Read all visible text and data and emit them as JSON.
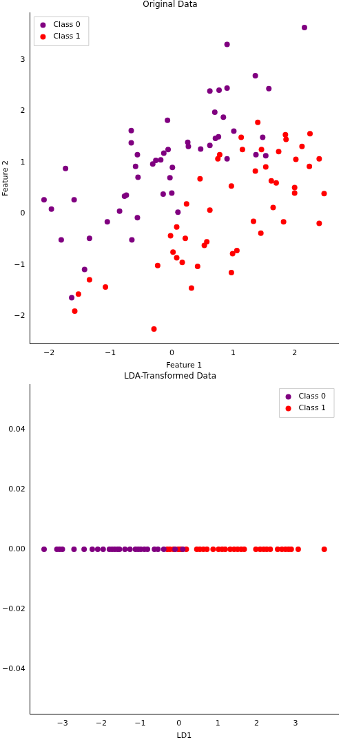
{
  "chart_data": [
    {
      "type": "scatter",
      "title": "Original Data",
      "xlabel": "Feature 1",
      "ylabel": "Feature 2",
      "xlim": [
        -2.31,
        2.71
      ],
      "ylim": [
        -2.54,
        3.92
      ],
      "xticks": [
        {
          "value": -2,
          "label": "−2"
        },
        {
          "value": -1,
          "label": "−1"
        },
        0,
        1,
        2
      ],
      "yticks": [
        {
          "value": -2,
          "label": "−2"
        },
        {
          "value": -1,
          "label": "−1"
        },
        0,
        1,
        2,
        3
      ],
      "marker": "circle",
      "legend": "top left",
      "grid": false,
      "series": [
        {
          "name": "Class 0",
          "color": "#800080",
          "x": [
            2.16,
            0.9,
            1.36,
            0.62,
            0.77,
            0.9,
            1.58,
            0.7,
            0.84,
            1.01,
            0.76,
            0.71,
            1.48,
            0.26,
            0.27,
            0.47,
            0.62,
            1.37,
            1.53,
            0.9,
            -0.07,
            -0.66,
            -0.66,
            -0.56,
            -0.13,
            -0.06,
            -0.18,
            -0.26,
            -0.31,
            -0.59,
            0.01,
            -1.73,
            -0.55,
            -0.03,
            -2.08,
            -1.59,
            -1.96,
            -0.14,
            0.0,
            -0.77,
            -0.74,
            -0.85,
            0.1,
            -0.56,
            -1.05,
            -1.8,
            -1.34,
            -0.65,
            -1.42,
            -1.63
          ],
          "values": [
            3.63,
            3.3,
            2.69,
            2.39,
            2.41,
            2.45,
            2.44,
            1.98,
            1.88,
            1.61,
            1.5,
            1.47,
            1.49,
            1.39,
            1.31,
            1.26,
            1.33,
            1.15,
            1.13,
            1.07,
            1.82,
            1.62,
            1.38,
            1.15,
            1.18,
            1.25,
            1.05,
            1.04,
            0.97,
            0.92,
            0.9,
            0.88,
            0.71,
            0.7,
            0.27,
            0.27,
            0.09,
            0.38,
            0.4,
            0.34,
            0.36,
            0.05,
            0.03,
            -0.08,
            -0.16,
            -0.51,
            -0.48,
            -0.51,
            -1.09,
            -1.64
          ]
        },
        {
          "name": "Class 1",
          "color": "#ff0000",
          "x": [
            1.4,
            1.13,
            1.85,
            1.86,
            2.25,
            1.15,
            1.46,
            1.74,
            2.12,
            0.78,
            0.75,
            2.02,
            2.4,
            2.24,
            1.53,
            1.36,
            0.46,
            1.62,
            1.7,
            0.97,
            2.0,
            2.0,
            2.48,
            0.24,
            0.62,
            1.65,
            0.08,
            1.33,
            1.82,
            2.4,
            1.45,
            0.22,
            0.57,
            0.53,
            1.06,
            0.99,
            0.08,
            0.17,
            0.42,
            0.97,
            0.32,
            -0.02,
            0.02,
            -0.23,
            -1.34,
            -1.08,
            -1.52,
            -1.58,
            -0.29
          ],
          "values": [
            1.78,
            1.49,
            1.54,
            1.45,
            1.56,
            1.25,
            1.25,
            1.21,
            1.31,
            1.15,
            1.07,
            1.06,
            1.07,
            0.92,
            0.91,
            0.83,
            0.68,
            0.64,
            0.6,
            0.54,
            0.51,
            0.4,
            0.39,
            0.19,
            0.07,
            0.12,
            -0.26,
            -0.15,
            -0.16,
            -0.19,
            -0.38,
            -0.48,
            -0.55,
            -0.62,
            -0.72,
            -0.78,
            -0.86,
            -0.95,
            -1.03,
            -1.15,
            -1.45,
            -0.43,
            -0.75,
            -1.01,
            -1.29,
            -1.43,
            -1.57,
            -1.9,
            -2.25
          ]
        }
      ]
    },
    {
      "type": "scatter",
      "title": "LDA-Transformed Data",
      "xlabel": "LD1",
      "xlim": [
        -3.83,
        4.1
      ],
      "ylim": [
        -0.055,
        0.055
      ],
      "xticks": [
        {
          "value": -3,
          "label": "−3"
        },
        {
          "value": -2,
          "label": "−2"
        },
        {
          "value": -1,
          "label": "−1"
        },
        0,
        1,
        2,
        3
      ],
      "yticks": [
        {
          "value": -0.04,
          "label": "−0.04"
        },
        {
          "value": -0.02,
          "label": "−0.02"
        },
        {
          "value": 0,
          "label": "0.00"
        },
        0.02,
        0.04
      ],
      "marker": "circle",
      "legend": "top right",
      "grid": false,
      "series": [
        {
          "name": "Class 0",
          "color": "#800080",
          "x": [
            -3.47,
            -3.14,
            -3.07,
            -3.0,
            -2.7,
            -2.44,
            -2.23,
            -2.09,
            -1.95,
            -1.79,
            -1.72,
            -1.65,
            -1.58,
            -1.53,
            -1.39,
            -1.26,
            -1.12,
            -1.05,
            -0.98,
            -0.89,
            -0.81,
            -0.63,
            -0.54,
            -0.39,
            -0.1,
            0.1
          ],
          "values": [
            0,
            0,
            0,
            0,
            0,
            0,
            0,
            0,
            0,
            0,
            0,
            0,
            0,
            0,
            0,
            0,
            0,
            0,
            0,
            0,
            0,
            0,
            0,
            0,
            0,
            0
          ]
        },
        {
          "name": "Class 1",
          "color": "#ff0000",
          "x": [
            -0.3,
            -0.23,
            -0.14,
            0.04,
            -0.02,
            0.07,
            0.19,
            0.46,
            0.54,
            0.63,
            0.72,
            0.88,
            1.02,
            1.11,
            1.19,
            1.32,
            1.42,
            1.51,
            1.6,
            1.68,
            1.98,
            2.09,
            2.18,
            2.26,
            2.35,
            2.54,
            2.65,
            2.74,
            2.82,
            2.89,
            3.07,
            3.74
          ],
          "values": [
            0,
            0,
            0,
            0,
            0,
            0,
            0,
            0,
            0,
            0,
            0,
            0,
            0,
            0,
            0,
            0,
            0,
            0,
            0,
            0,
            0,
            0,
            0,
            0,
            0,
            0,
            0,
            0,
            0,
            0,
            0,
            0
          ]
        }
      ]
    }
  ]
}
